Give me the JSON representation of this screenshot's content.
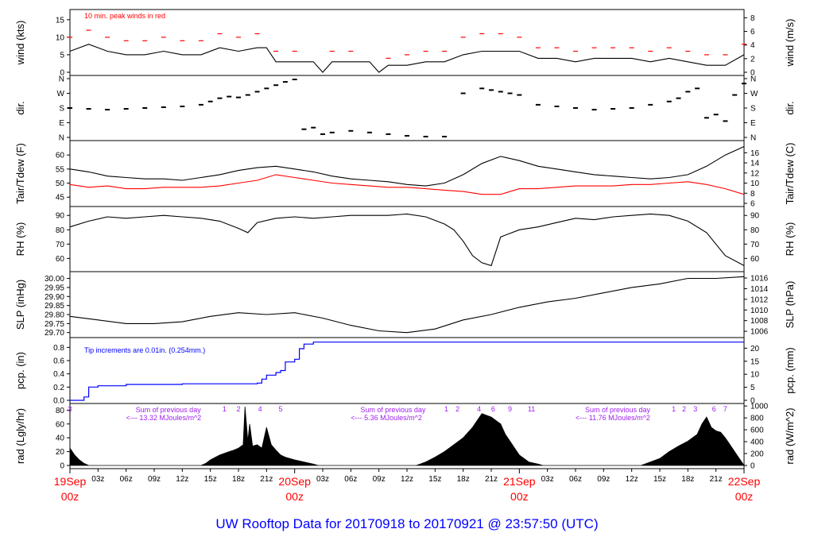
{
  "title": "UW Rooftop Data for 20170918  to  20170921 @ 23:57:50  (UTC)",
  "colors": {
    "main": "#000000",
    "peak": "#ff0000",
    "dew": "#ff0000",
    "precip": "#0000ff",
    "annot": "#a020f0",
    "date": "#ff0000",
    "title": "#0000ff"
  },
  "x_axis": {
    "hour_ticks": [
      "03z",
      "06z",
      "09z",
      "12z",
      "15z",
      "18z",
      "21z",
      "03z",
      "06z",
      "09z",
      "12z",
      "15z",
      "18z",
      "21z",
      "03z",
      "06z",
      "09z",
      "12z",
      "15z",
      "18z",
      "21z"
    ],
    "hour_values": [
      3,
      6,
      9,
      12,
      15,
      18,
      21,
      27,
      30,
      33,
      36,
      39,
      42,
      45,
      51,
      54,
      57,
      60,
      63,
      66,
      69
    ],
    "dates": [
      {
        "day": "19Sep",
        "hour": "00z",
        "x": 0
      },
      {
        "day": "20Sep",
        "hour": "00z",
        "x": 24
      },
      {
        "day": "21Sep",
        "hour": "00z",
        "x": 48
      },
      {
        "day": "22Sep",
        "hour": "00z",
        "x": 72
      }
    ],
    "range_hours": [
      0,
      72
    ]
  },
  "chart_data": [
    {
      "type": "line",
      "panel": "wind",
      "ylabel_left": "wind (kts)",
      "ylabel_right": "wind (m/s)",
      "left_ticks": [
        0,
        5,
        10,
        15
      ],
      "right_ticks": [
        0,
        2,
        4,
        6,
        8
      ],
      "ylim": [
        0,
        17
      ],
      "annotation": "10 min. peak winds in red",
      "series": [
        {
          "name": "",
          "x": [
            0,
            2,
            4,
            6,
            8,
            10,
            12,
            14,
            16,
            18,
            20,
            21,
            22,
            24,
            26,
            27,
            28,
            30,
            32,
            33,
            34,
            36,
            38,
            40,
            42,
            44,
            46,
            48,
            50,
            52,
            54,
            56,
            58,
            60,
            62,
            64,
            66,
            68,
            70,
            72
          ],
          "values": [
            6,
            8,
            6,
            5,
            5,
            6,
            5,
            5,
            7,
            6,
            7,
            7,
            3,
            3,
            3,
            0,
            3,
            3,
            3,
            0,
            2,
            2,
            3,
            3,
            5,
            6,
            6,
            6,
            4,
            4,
            3,
            4,
            4,
            4,
            3,
            4,
            3,
            2,
            2,
            5
          ]
        }
      ],
      "peaks_x": [
        0,
        2,
        4,
        6,
        8,
        10,
        12,
        14,
        16,
        18,
        20,
        22,
        24,
        28,
        30,
        34,
        36,
        38,
        40,
        42,
        44,
        46,
        48,
        50,
        52,
        54,
        56,
        58,
        60,
        62,
        64,
        66,
        68,
        70,
        72
      ],
      "peaks": [
        10,
        12,
        10,
        9,
        9,
        10,
        9,
        9,
        11,
        10,
        11,
        6,
        6,
        6,
        6,
        4,
        5,
        6,
        6,
        10,
        11,
        11,
        10,
        7,
        7,
        6,
        7,
        7,
        7,
        6,
        7,
        6,
        5,
        5,
        8
      ]
    },
    {
      "type": "scatter",
      "panel": "dir",
      "ylabel_left": "dir.",
      "ylabel_right": "dir.",
      "left_ticks": [
        "N",
        "E",
        "S",
        "W",
        "N"
      ],
      "right_ticks": [
        "N",
        "E",
        "S",
        "W",
        "N"
      ],
      "ylim": [
        0,
        360
      ],
      "series": [
        {
          "name": "",
          "x": [
            0,
            2,
            4,
            6,
            8,
            10,
            12,
            14,
            15,
            16,
            17,
            18,
            19,
            20,
            21,
            22,
            23,
            24,
            25,
            26,
            27,
            28,
            30,
            32,
            34,
            36,
            38,
            40,
            42,
            44,
            45,
            46,
            47,
            48,
            50,
            52,
            54,
            56,
            58,
            60,
            62,
            64,
            65,
            66,
            67,
            68,
            69,
            70,
            71,
            72
          ],
          "values": [
            180,
            175,
            170,
            175,
            180,
            185,
            190,
            200,
            220,
            240,
            250,
            245,
            260,
            280,
            300,
            320,
            340,
            355,
            50,
            60,
            20,
            30,
            40,
            30,
            20,
            10,
            5,
            5,
            270,
            300,
            290,
            280,
            270,
            260,
            200,
            190,
            180,
            170,
            175,
            180,
            200,
            220,
            240,
            280,
            300,
            120,
            140,
            100,
            260,
            330
          ]
        }
      ]
    },
    {
      "type": "line",
      "panel": "temp",
      "ylabel_left": "Tair/Tdew (F)",
      "ylabel_right": "Tair/Tdew (C)",
      "left_ticks": [
        45,
        50,
        55,
        60
      ],
      "right_ticks": [
        6,
        8,
        10,
        12,
        14,
        16
      ],
      "ylim": [
        42.8,
        64
      ],
      "series": [
        {
          "name": "",
          "x": [
            0,
            2,
            4,
            6,
            8,
            10,
            12,
            14,
            16,
            18,
            20,
            22,
            24,
            26,
            28,
            30,
            32,
            34,
            36,
            38,
            40,
            42,
            44,
            46,
            48,
            50,
            52,
            54,
            56,
            58,
            60,
            62,
            64,
            66,
            68,
            70,
            72
          ],
          "values": [
            55,
            54,
            52.5,
            52,
            51.5,
            51.5,
            51,
            52,
            53,
            54.5,
            55.5,
            56,
            55,
            54,
            52.5,
            51.5,
            51,
            50.5,
            49.5,
            49,
            50,
            53,
            57,
            59.5,
            58,
            56,
            55,
            54,
            53,
            52.5,
            52,
            51.5,
            52,
            53,
            56,
            60,
            63
          ]
        },
        {
          "name": "",
          "x": [
            0,
            2,
            4,
            6,
            8,
            10,
            12,
            14,
            16,
            18,
            20,
            22,
            24,
            26,
            28,
            30,
            32,
            34,
            36,
            38,
            40,
            42,
            44,
            46,
            48,
            50,
            52,
            54,
            56,
            58,
            60,
            62,
            64,
            66,
            68,
            70,
            72
          ],
          "values": [
            49.5,
            48.5,
            49,
            48,
            48,
            48.5,
            48.5,
            48.5,
            49,
            50,
            51,
            53,
            52,
            51,
            50,
            49.5,
            49,
            48.5,
            48.5,
            48,
            47.5,
            47,
            46,
            46,
            48,
            48,
            48.5,
            49,
            49,
            49,
            49.5,
            49.5,
            50,
            50.5,
            49.5,
            48,
            46
          ]
        }
      ]
    },
    {
      "type": "line",
      "panel": "rh",
      "ylabel_left": "RH (%)",
      "ylabel_right": "RH (%)",
      "left_ticks": [
        60,
        70,
        80,
        90
      ],
      "right_ticks": [
        60,
        70,
        80,
        90
      ],
      "ylim": [
        53,
        94
      ],
      "series": [
        {
          "name": "",
          "x": [
            0,
            2,
            4,
            6,
            8,
            10,
            12,
            14,
            16,
            18,
            19,
            20,
            22,
            24,
            26,
            28,
            30,
            32,
            34,
            36,
            38,
            40,
            41,
            42,
            43,
            44,
            45,
            46,
            48,
            50,
            52,
            54,
            56,
            58,
            60,
            62,
            64,
            66,
            68,
            70,
            72
          ],
          "values": [
            82,
            86,
            89,
            88,
            89,
            90,
            89,
            88,
            86,
            81,
            78,
            85,
            88,
            89,
            88,
            89,
            90,
            90,
            90,
            91,
            89,
            84,
            80,
            72,
            62,
            57,
            55,
            75,
            80,
            82,
            85,
            88,
            87,
            89,
            90,
            91,
            90,
            86,
            78,
            62,
            55
          ]
        }
      ]
    },
    {
      "type": "line",
      "panel": "slp",
      "ylabel_left": "SLP (inHg)",
      "ylabel_right": "SLP (hPa)",
      "left_ticks": [
        29.7,
        29.75,
        29.8,
        29.85,
        29.9,
        29.95,
        30
      ],
      "right_ticks": [
        1006,
        1008,
        1010,
        1012,
        1014,
        1016
      ],
      "ylim": [
        29.69,
        30.02
      ],
      "series": [
        {
          "name": "",
          "x": [
            0,
            3,
            6,
            9,
            12,
            15,
            18,
            21,
            24,
            27,
            30,
            33,
            36,
            39,
            42,
            45,
            48,
            51,
            54,
            57,
            60,
            63,
            66,
            69,
            72
          ],
          "values": [
            29.79,
            29.77,
            29.75,
            29.75,
            29.76,
            29.79,
            29.81,
            29.8,
            29.81,
            29.78,
            29.74,
            29.71,
            29.7,
            29.72,
            29.77,
            29.8,
            29.84,
            29.87,
            29.89,
            29.92,
            29.95,
            29.97,
            30.0,
            30.0,
            30.01
          ]
        }
      ]
    },
    {
      "type": "area",
      "panel": "pcp",
      "ylabel_left": "pcp. (in)",
      "ylabel_right": "pcp. (mm)",
      "left_ticks": [
        0,
        0.2,
        0.4,
        0.6,
        0.8
      ],
      "right_ticks": [
        0,
        5,
        10,
        15,
        20
      ],
      "ylim": [
        0,
        0.9
      ],
      "annotation": "Tip increments are 0.01in. (0.254mm.)",
      "series": [
        {
          "name": "",
          "x": [
            0,
            1,
            1.5,
            2,
            3,
            4,
            6,
            8,
            12,
            16,
            19,
            20,
            20.5,
            21,
            22,
            22.5,
            23,
            24,
            24.5,
            25,
            26,
            72
          ],
          "values": [
            0,
            0,
            0.05,
            0.2,
            0.22,
            0.22,
            0.24,
            0.24,
            0.25,
            0.25,
            0.25,
            0.26,
            0.32,
            0.38,
            0.42,
            0.45,
            0.58,
            0.62,
            0.78,
            0.85,
            0.88,
            0.88
          ]
        }
      ]
    },
    {
      "type": "area",
      "panel": "rad",
      "ylabel_left": "rad (Lgly/hr)",
      "ylabel_right": "rad (W/m^2)",
      "left_ticks": [
        0,
        20,
        40,
        60,
        80
      ],
      "right_ticks": [
        0,
        200,
        400,
        600,
        800,
        1000
      ],
      "ylim": [
        0,
        85
      ],
      "annotations": [
        {
          "text": "Sum of previous day",
          "x": 6
        },
        {
          "text": "<--- 13.32 MJoules/m^2",
          "x": 6
        },
        {
          "text": "Sum of previous day",
          "x": 30
        },
        {
          "text": "<--- 5.36 MJoules/m^2",
          "x": 30
        },
        {
          "text": "Sum of previous day",
          "x": 54
        },
        {
          "text": "<--- 11.76 MJoules/m^2",
          "x": 54
        }
      ],
      "tip_numbers": [
        "3",
        "1",
        "2",
        "4",
        "5",
        "1",
        "2",
        "4",
        "6",
        "9",
        "11",
        "1",
        "2",
        "3",
        "6",
        "7"
      ],
      "tip_x": [
        0,
        16.5,
        18,
        20.3,
        22.5,
        40.2,
        41.4,
        43.7,
        45.2,
        47,
        49.3,
        64.5,
        65.6,
        66.8,
        68.8,
        70
      ],
      "series": [
        {
          "name": "",
          "x": [
            0,
            0.5,
            1,
            1.5,
            2,
            14,
            14.5,
            15,
            16,
            17,
            17.5,
            18,
            18.5,
            18.7,
            19,
            19.2,
            19.5,
            20,
            20.5,
            21,
            21.5,
            22,
            22.5,
            23,
            24,
            25,
            26,
            26.5,
            37,
            38,
            39,
            40,
            41,
            42,
            43,
            44,
            45,
            46,
            46.5,
            47,
            47.5,
            48,
            49,
            50,
            50.5,
            61,
            62,
            63,
            64,
            65,
            66,
            67,
            67.5,
            68,
            68.5,
            69,
            69.5,
            70,
            70.5,
            71,
            71.5,
            72
          ],
          "values": [
            25,
            15,
            8,
            3,
            0,
            0,
            3,
            8,
            15,
            20,
            22,
            25,
            30,
            85,
            35,
            60,
            28,
            30,
            25,
            55,
            30,
            22,
            15,
            12,
            8,
            5,
            2,
            0,
            0,
            5,
            12,
            20,
            30,
            40,
            55,
            75,
            70,
            60,
            45,
            35,
            25,
            15,
            5,
            2,
            0,
            0,
            5,
            10,
            20,
            28,
            35,
            45,
            60,
            70,
            55,
            50,
            48,
            40,
            30,
            20,
            10,
            0
          ]
        }
      ]
    }
  ]
}
